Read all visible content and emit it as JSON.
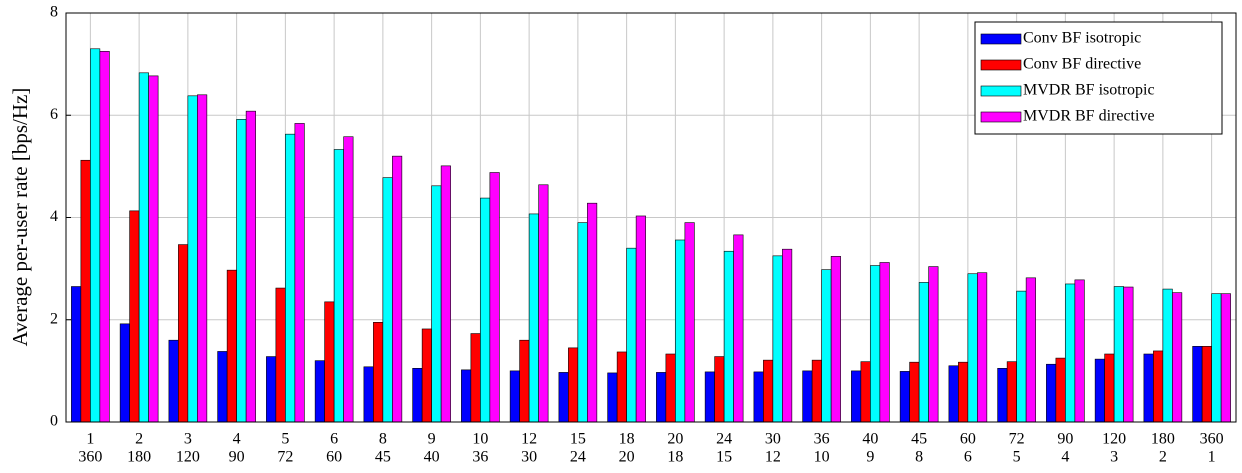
{
  "chart_data": {
    "type": "bar",
    "ylabel": "Average per-user rate [bps/Hz]",
    "categories": [
      [
        "1",
        "360"
      ],
      [
        "2",
        "180"
      ],
      [
        "3",
        "120"
      ],
      [
        "4",
        "90"
      ],
      [
        "5",
        "72"
      ],
      [
        "6",
        "60"
      ],
      [
        "8",
        "45"
      ],
      [
        "9",
        "40"
      ],
      [
        "10",
        "36"
      ],
      [
        "12",
        "30"
      ],
      [
        "15",
        "24"
      ],
      [
        "18",
        "20"
      ],
      [
        "20",
        "18"
      ],
      [
        "24",
        "15"
      ],
      [
        "30",
        "12"
      ],
      [
        "36",
        "10"
      ],
      [
        "40",
        "9"
      ],
      [
        "45",
        "8"
      ],
      [
        "60",
        "6"
      ],
      [
        "72",
        "5"
      ],
      [
        "90",
        "4"
      ],
      [
        "120",
        "3"
      ],
      [
        "180",
        "2"
      ],
      [
        "360",
        "1"
      ]
    ],
    "series": [
      {
        "name": "Conv BF isotropic",
        "color": "#0000ff",
        "values": [
          2.65,
          1.92,
          1.6,
          1.38,
          1.28,
          1.2,
          1.08,
          1.05,
          1.02,
          1.0,
          0.97,
          0.96,
          0.97,
          0.98,
          0.98,
          1.0,
          1.0,
          0.99,
          1.1,
          1.05,
          1.13,
          1.23,
          1.33,
          1.48
        ]
      },
      {
        "name": "Conv BF directive",
        "color": "#ff0000",
        "values": [
          5.12,
          4.13,
          3.47,
          2.97,
          2.62,
          2.35,
          1.95,
          1.82,
          1.73,
          1.6,
          1.45,
          1.37,
          1.33,
          1.28,
          1.21,
          1.21,
          1.18,
          1.17,
          1.17,
          1.18,
          1.25,
          1.33,
          1.39,
          1.48
        ]
      },
      {
        "name": "MVDR BF isotropic",
        "color": "#00ffff",
        "values": [
          7.3,
          6.83,
          6.38,
          5.92,
          5.63,
          5.33,
          4.78,
          4.62,
          4.38,
          4.07,
          3.9,
          3.4,
          3.56,
          3.34,
          3.25,
          2.98,
          3.06,
          2.73,
          2.9,
          2.56,
          2.7,
          2.65,
          2.6,
          2.51
        ]
      },
      {
        "name": "MVDR BF directive",
        "color": "#ff00ff",
        "values": [
          7.25,
          6.77,
          6.4,
          6.08,
          5.84,
          5.58,
          5.2,
          5.01,
          4.88,
          4.64,
          4.28,
          4.03,
          3.9,
          3.66,
          3.38,
          3.24,
          3.12,
          3.04,
          2.92,
          2.82,
          2.78,
          2.64,
          2.53,
          2.51
        ]
      }
    ],
    "ylim": [
      0,
      8
    ],
    "yticks": [
      0,
      2,
      4,
      6,
      8
    ],
    "grid": true,
    "legend": "upper right"
  }
}
